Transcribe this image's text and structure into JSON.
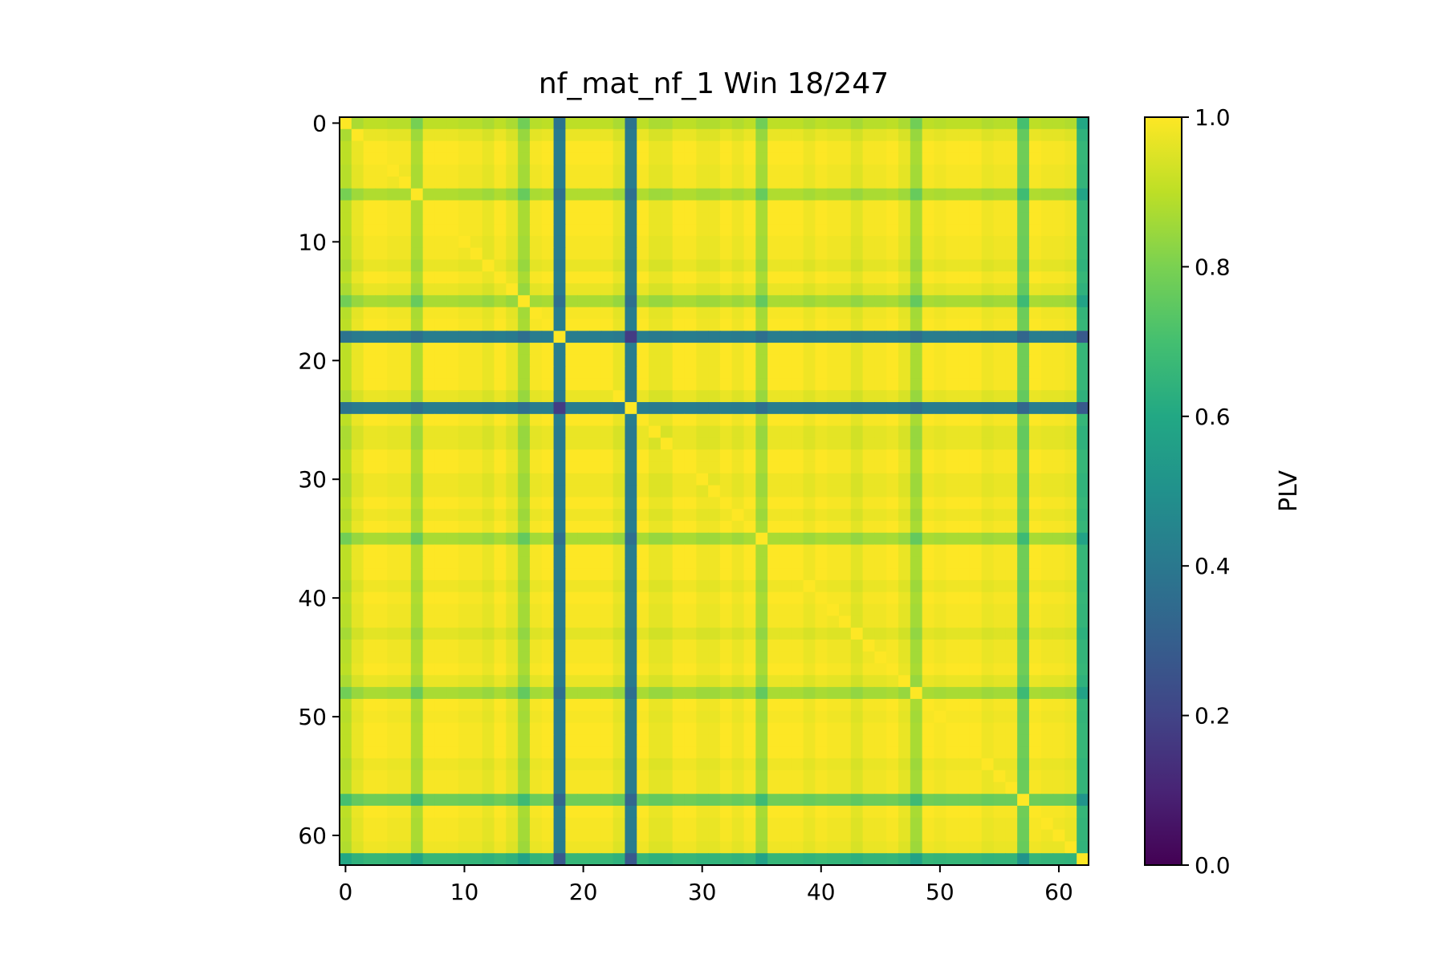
{
  "chart_data": {
    "type": "heatmap",
    "title": "nf_mat_nf_1 Win 18/247",
    "n": 63,
    "x_ticks": [
      0,
      10,
      20,
      30,
      40,
      50,
      60
    ],
    "y_ticks": [
      0,
      10,
      20,
      30,
      40,
      50,
      60
    ],
    "colorbar": {
      "label": "PLV",
      "min": 0.0,
      "max": 1.0,
      "ticks": [
        "0.0",
        "0.2",
        "0.4",
        "0.6",
        "0.8",
        "1.0"
      ],
      "colormap": "viridis"
    },
    "channel_profile": [
      0.9,
      0.97,
      1.0,
      1.0,
      0.99,
      0.99,
      0.88,
      1.0,
      1.0,
      1.0,
      0.99,
      0.99,
      0.97,
      1.0,
      0.97,
      0.87,
      0.99,
      1.0,
      0.42,
      1.0,
      1.0,
      1.0,
      1.0,
      0.97,
      0.42,
      1.0,
      0.97,
      0.97,
      1.0,
      1.0,
      0.98,
      0.98,
      1.0,
      0.98,
      1.0,
      0.87,
      1.0,
      1.0,
      1.0,
      0.98,
      1.0,
      0.99,
      0.99,
      0.96,
      0.99,
      0.99,
      1.0,
      0.97,
      0.87,
      1.0,
      0.99,
      1.0,
      1.0,
      1.0,
      0.98,
      0.99,
      0.99,
      0.78,
      1.0,
      0.99,
      0.99,
      0.98,
      0.66
    ]
  }
}
